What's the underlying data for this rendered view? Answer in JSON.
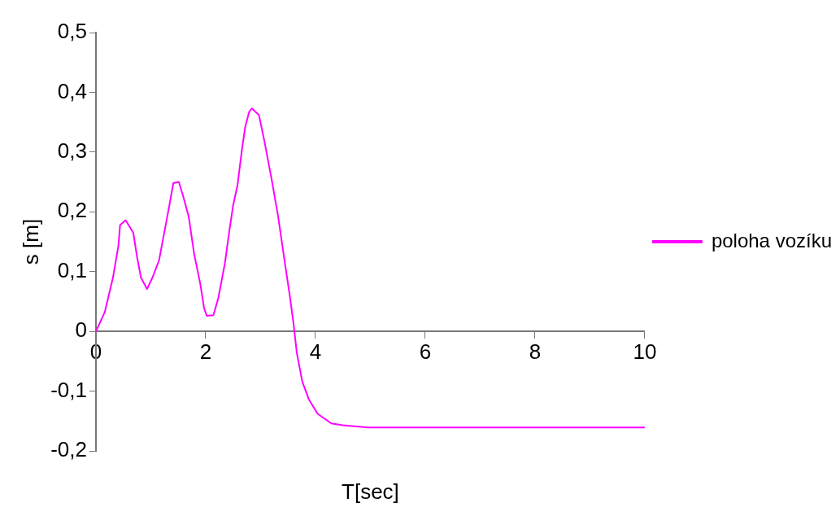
{
  "chart_data": {
    "type": "line",
    "xlabel": "T[sec]",
    "ylabel": "s [m]",
    "xlim": [
      0,
      10
    ],
    "xticks": [
      0,
      2,
      4,
      6,
      8,
      10
    ],
    "ylim": [
      -0.2,
      0.5
    ],
    "yticks": [
      {
        "value": -0.2,
        "label": "-0,2"
      },
      {
        "value": -0.1,
        "label": "-0,1"
      },
      {
        "value": 0,
        "label": "0"
      },
      {
        "value": 0.1,
        "label": "0,1"
      },
      {
        "value": 0.2,
        "label": "0,2"
      },
      {
        "value": 0.3,
        "label": "0,3"
      },
      {
        "value": 0.4,
        "label": "0,4"
      },
      {
        "value": 0.5,
        "label": "0,5"
      }
    ],
    "grid": false,
    "legend": "right",
    "marker": "none",
    "line_style": "solid",
    "series": [
      {
        "name": "poloha vozíku",
        "color": "#ff00ff",
        "x": [
          0,
          0.16,
          0.31,
          0.41,
          0.44,
          0.54,
          0.68,
          0.75,
          0.82,
          0.93,
          1.03,
          1.15,
          1.23,
          1.33,
          1.41,
          1.51,
          1.59,
          1.69,
          1.79,
          1.9,
          1.97,
          2.02,
          2.14,
          2.23,
          2.35,
          2.43,
          2.5,
          2.58,
          2.66,
          2.72,
          2.79,
          2.84,
          2.97,
          3.07,
          3.2,
          3.32,
          3.45,
          3.53,
          3.6,
          3.66,
          3.76,
          3.88,
          4.04,
          4.29,
          4.5,
          4.96,
          10
        ],
        "values": [
          0,
          0.032,
          0.09,
          0.144,
          0.178,
          0.186,
          0.165,
          0.124,
          0.09,
          0.071,
          0.09,
          0.119,
          0.158,
          0.207,
          0.248,
          0.25,
          0.226,
          0.192,
          0.129,
          0.08,
          0.039,
          0.026,
          0.027,
          0.056,
          0.114,
          0.168,
          0.211,
          0.245,
          0.304,
          0.342,
          0.367,
          0.373,
          0.362,
          0.318,
          0.255,
          0.192,
          0.11,
          0.061,
          0.013,
          -0.036,
          -0.084,
          -0.114,
          -0.138,
          -0.154,
          -0.157,
          -0.161,
          -0.161
        ]
      }
    ]
  }
}
